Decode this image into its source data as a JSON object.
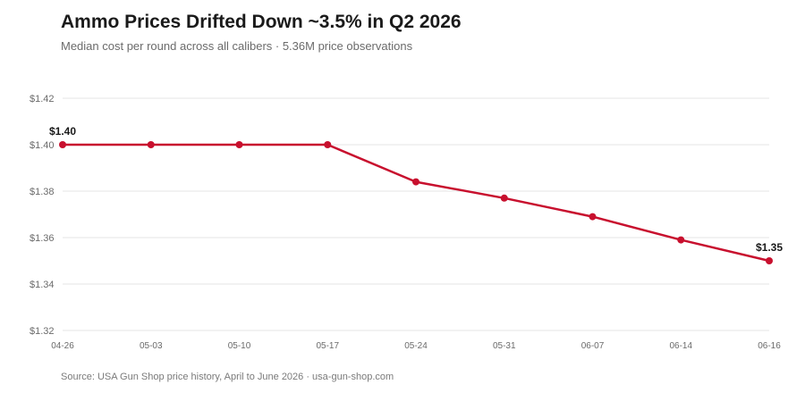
{
  "header": {
    "title": "Ammo Prices Drifted Down ~3.5% in Q2 2026",
    "subtitle": "Median cost per round across all calibers · 5.36M price observations"
  },
  "footer": {
    "source": "Source: USA Gun Shop price history, April to June 2026 · usa-gun-shop.com"
  },
  "colors": {
    "line": "#c8102e",
    "grid": "#e6e6e6"
  },
  "chart_data": {
    "type": "line",
    "title": "Ammo Prices Drifted Down ~3.5% in Q2 2026",
    "subtitle": "Median cost per round across all calibers · 5.36M price observations",
    "x": [
      "04-26",
      "05-03",
      "05-10",
      "05-17",
      "05-24",
      "05-31",
      "06-07",
      "06-14",
      "06-16"
    ],
    "series": [
      {
        "values": [
          1.4,
          1.4,
          1.4,
          1.4,
          1.384,
          1.377,
          1.369,
          1.359,
          1.35
        ]
      }
    ],
    "ylim": [
      1.32,
      1.42
    ],
    "yticks": [
      1.32,
      1.34,
      1.36,
      1.38,
      1.4,
      1.42
    ],
    "ytick_labels": [
      "$1.32",
      "$1.34",
      "$1.36",
      "$1.38",
      "$1.40",
      "$1.42"
    ],
    "annotations": [
      {
        "index": 0,
        "text": "$1.40"
      },
      {
        "index": 8,
        "text": "$1.35"
      }
    ],
    "grid": true
  }
}
